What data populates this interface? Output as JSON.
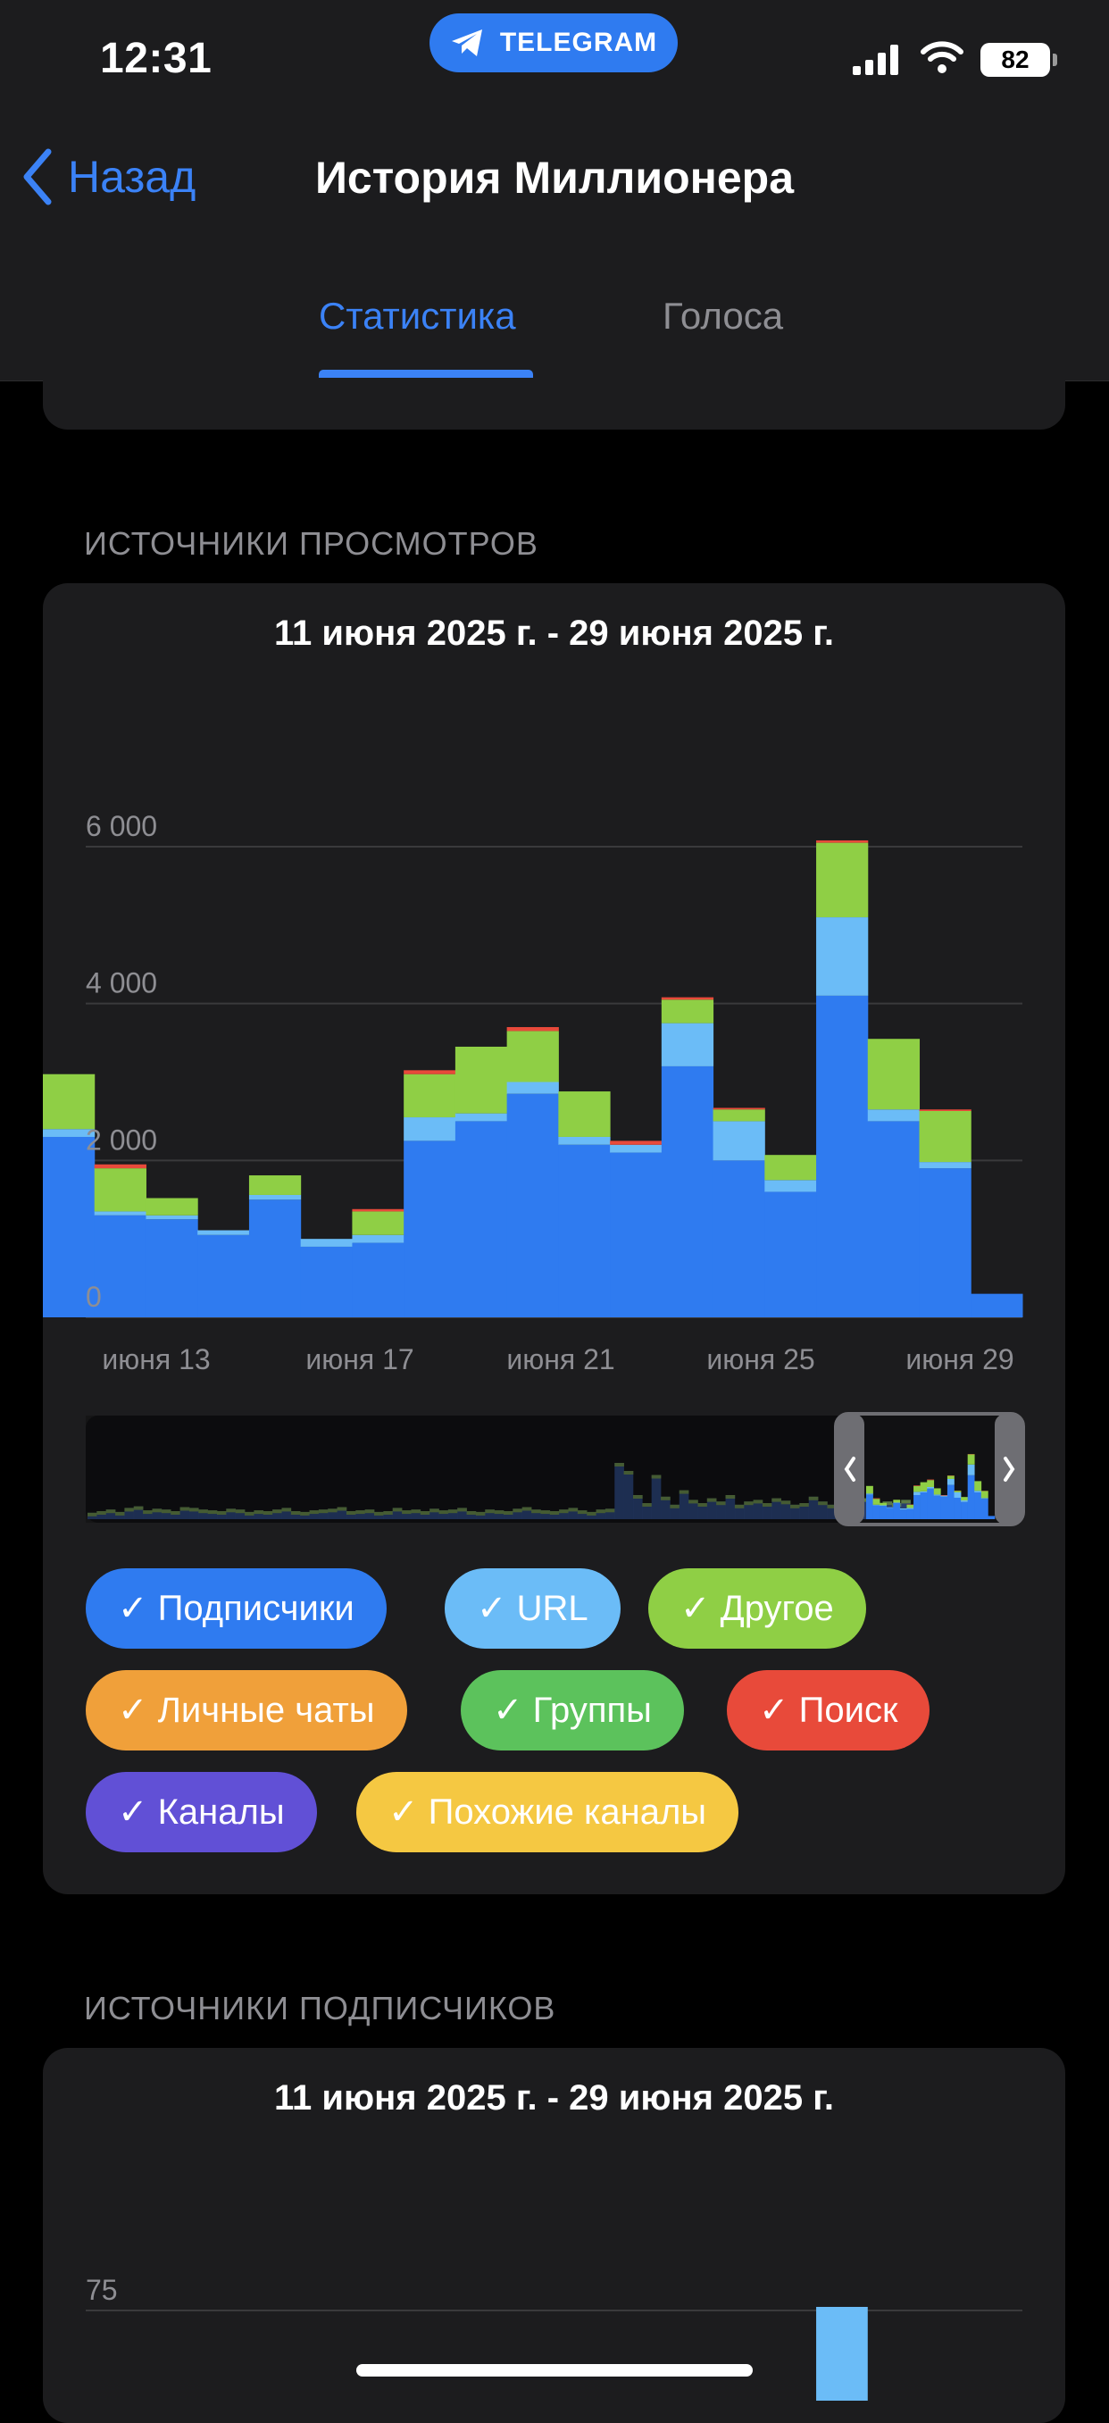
{
  "status_bar": {
    "time": "12:31",
    "badge": "TELEGRAM",
    "battery": "82"
  },
  "header": {
    "back_label": "Назад",
    "title": "История Миллионера",
    "tabs": [
      {
        "label": "Статистика",
        "active": true
      },
      {
        "label": "Голоса",
        "active": false
      }
    ]
  },
  "view_sources": {
    "section_title": "ИСТОЧНИКИ ПРОСМОТРОВ",
    "date_range": "11 июня 2025 г. - 29 июня 2025 г.",
    "chips": [
      {
        "label": "✓ Подписчики",
        "color": "#2f7bf0"
      },
      {
        "label": "✓ URL",
        "color": "#6bbcf7"
      },
      {
        "label": "✓ Другое",
        "color": "#8fcf45"
      },
      {
        "label": "✓ Личные чаты",
        "color": "#f0a03a"
      },
      {
        "label": "✓ Группы",
        "color": "#5cc25c"
      },
      {
        "label": "✓ Поиск",
        "color": "#e84a3a"
      },
      {
        "label": "✓ Каналы",
        "color": "#6150d6"
      },
      {
        "label": "✓ Похожие каналы",
        "color": "#f5c842"
      }
    ]
  },
  "subscriber_sources": {
    "section_title": "ИСТОЧНИКИ ПОДПИСЧИКОВ",
    "date_range": "11 июня 2025 г. - 29 июня 2025 г."
  },
  "chart_data": [
    {
      "type": "bar",
      "stacked": true,
      "ylim": [
        0,
        6000
      ],
      "y_ticks": [
        "0",
        "2 000",
        "4 000",
        "6 000"
      ],
      "x_ticks": [
        "июня 13",
        "июня 17",
        "июня 21",
        "июня 25",
        "июня 29"
      ],
      "days": [
        11,
        12,
        13,
        14,
        15,
        16,
        17,
        18,
        19,
        20,
        21,
        22,
        23,
        24,
        25,
        26,
        27,
        28,
        29
      ],
      "series": [
        {
          "name": "Подписчики",
          "color": "#2f7bf0",
          "values": [
            2300,
            1300,
            1250,
            1050,
            1500,
            900,
            950,
            2250,
            2500,
            2850,
            2200,
            2100,
            3200,
            2000,
            1600,
            4100,
            2500,
            1900,
            300
          ]
        },
        {
          "name": "URL",
          "color": "#6bbcf7",
          "values": [
            100,
            50,
            50,
            60,
            60,
            100,
            100,
            300,
            100,
            150,
            100,
            100,
            550,
            500,
            150,
            1000,
            150,
            80,
            0
          ]
        },
        {
          "name": "Другое",
          "color": "#8fcf45",
          "values": [
            700,
            550,
            220,
            0,
            250,
            0,
            300,
            550,
            850,
            650,
            580,
            0,
            300,
            150,
            320,
            950,
            900,
            650,
            0
          ]
        },
        {
          "name": "Поиск",
          "color": "#e84a3a",
          "values": [
            0,
            50,
            0,
            0,
            0,
            0,
            30,
            50,
            0,
            50,
            0,
            50,
            30,
            20,
            0,
            30,
            0,
            20,
            0
          ]
        }
      ]
    },
    {
      "type": "bar",
      "ylim_visible_tick": "75",
      "series": [
        {
          "name": "URL",
          "color": "#6bbcf7",
          "values": [
            0,
            0,
            0,
            0,
            0,
            0,
            0,
            0,
            0,
            0,
            0,
            0,
            0,
            0,
            0,
            77,
            0,
            0,
            0
          ]
        }
      ]
    }
  ]
}
